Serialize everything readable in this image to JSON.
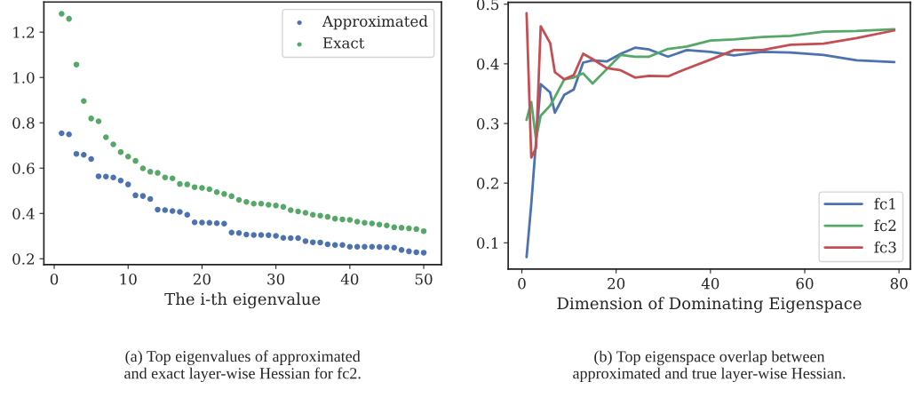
{
  "chart_data": [
    {
      "type": "scatter",
      "xlabel": "The i-th eigenvalue",
      "xlim": [
        -1.4,
        52.4
      ],
      "ylim": [
        0.174,
        1.333
      ],
      "xticks": [
        0,
        10,
        20,
        30,
        40,
        50
      ],
      "yticks": [
        0.2,
        0.4,
        0.6,
        0.8,
        {
          "value": 1,
          "label": "1.0"
        },
        1.2
      ],
      "grid": false,
      "legend": "top right",
      "marker": "circle",
      "x": [
        1,
        2,
        3,
        4,
        5,
        6,
        7,
        8,
        9,
        10,
        11,
        12,
        13,
        14,
        15,
        16,
        17,
        18,
        19,
        20,
        21,
        22,
        23,
        24,
        25,
        26,
        27,
        28,
        29,
        30,
        31,
        32,
        33,
        34,
        35,
        36,
        37,
        38,
        39,
        40,
        41,
        42,
        43,
        44,
        45,
        46,
        47,
        48,
        49,
        50
      ],
      "series": [
        {
          "name": "Approximated",
          "color": "#4c72b0",
          "values": [
            0.754,
            0.749,
            0.663,
            0.659,
            0.64,
            0.564,
            0.563,
            0.559,
            0.545,
            0.528,
            0.48,
            0.477,
            0.464,
            0.417,
            0.415,
            0.411,
            0.407,
            0.394,
            0.361,
            0.36,
            0.359,
            0.357,
            0.355,
            0.316,
            0.314,
            0.307,
            0.305,
            0.305,
            0.304,
            0.301,
            0.292,
            0.291,
            0.291,
            0.278,
            0.273,
            0.272,
            0.264,
            0.261,
            0.261,
            0.253,
            0.253,
            0.253,
            0.253,
            0.252,
            0.251,
            0.249,
            0.239,
            0.233,
            0.229,
            0.227
          ]
        },
        {
          "name": "Exact",
          "color": "#55a868",
          "values": [
            1.281,
            1.259,
            1.057,
            0.896,
            0.819,
            0.807,
            0.736,
            0.705,
            0.671,
            0.651,
            0.632,
            0.599,
            0.584,
            0.579,
            0.559,
            0.555,
            0.53,
            0.528,
            0.516,
            0.513,
            0.507,
            0.494,
            0.486,
            0.476,
            0.46,
            0.451,
            0.443,
            0.443,
            0.438,
            0.435,
            0.429,
            0.415,
            0.409,
            0.403,
            0.394,
            0.39,
            0.385,
            0.377,
            0.374,
            0.372,
            0.364,
            0.359,
            0.356,
            0.351,
            0.347,
            0.339,
            0.337,
            0.334,
            0.331,
            0.322
          ]
        }
      ],
      "annotations": [
        "(a) Top eigenvalues of approximated\nand exact layer-wise Hessian for fc2."
      ]
    },
    {
      "type": "line",
      "xlabel": "Dimension of Dominating Eigenspace",
      "xlim": [
        -2.9,
        82.4
      ],
      "ylim": [
        0.056,
        0.503
      ],
      "xticks": [
        0,
        20,
        40,
        60,
        80
      ],
      "yticks": [
        0.1,
        0.2,
        0.3,
        0.4,
        0.5
      ],
      "grid": false,
      "legend": "bottom right",
      "marker": "none",
      "line_style": "solid",
      "x": [
        1,
        2,
        3,
        4,
        6,
        7,
        9,
        11,
        13,
        15,
        18,
        21,
        24,
        27,
        31,
        35,
        40,
        45,
        51,
        57,
        64,
        71,
        79
      ],
      "series": [
        {
          "name": "fc1",
          "color": "#4c72b0",
          "values": [
            0.076,
            0.165,
            0.27,
            0.366,
            0.352,
            0.318,
            0.348,
            0.357,
            0.402,
            0.406,
            0.404,
            0.417,
            0.427,
            0.424,
            0.412,
            0.423,
            0.42,
            0.414,
            0.42,
            0.419,
            0.415,
            0.406,
            0.403
          ]
        },
        {
          "name": "fc2",
          "color": "#55a868",
          "values": [
            0.306,
            0.336,
            0.274,
            0.313,
            0.33,
            0.344,
            0.374,
            0.377,
            0.384,
            0.367,
            0.391,
            0.415,
            0.412,
            0.412,
            0.425,
            0.429,
            0.439,
            0.441,
            0.445,
            0.447,
            0.454,
            0.455,
            0.458
          ]
        },
        {
          "name": "fc3",
          "color": "#c44e52",
          "values": [
            0.485,
            0.243,
            0.259,
            0.463,
            0.435,
            0.386,
            0.374,
            0.381,
            0.417,
            0.408,
            0.393,
            0.389,
            0.377,
            0.38,
            0.379,
            0.392,
            0.407,
            0.423,
            0.423,
            0.432,
            0.434,
            0.443,
            0.456
          ]
        }
      ],
      "annotations": [
        "(b) Top eigenspace overlap between\napproximated and true layer-wise Hessian."
      ]
    }
  ]
}
